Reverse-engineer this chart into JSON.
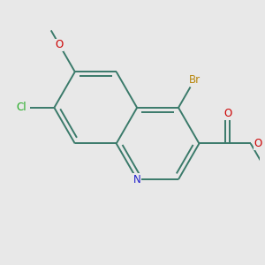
{
  "bg_color": "#e8e8e8",
  "bond_color": "#3a7a6a",
  "bond_width": 1.4,
  "atom_colors": {
    "Br": "#b8860b",
    "O": "#cc0000",
    "N": "#2222cc",
    "Cl": "#22aa22",
    "C": "#000000"
  },
  "atom_fontsizes": {
    "Br": 8.5,
    "O": 8.5,
    "N": 8.5,
    "Cl": 8.5,
    "CH3": 7.5,
    "ethyl1": 7.5,
    "ethyl2": 7.5
  }
}
